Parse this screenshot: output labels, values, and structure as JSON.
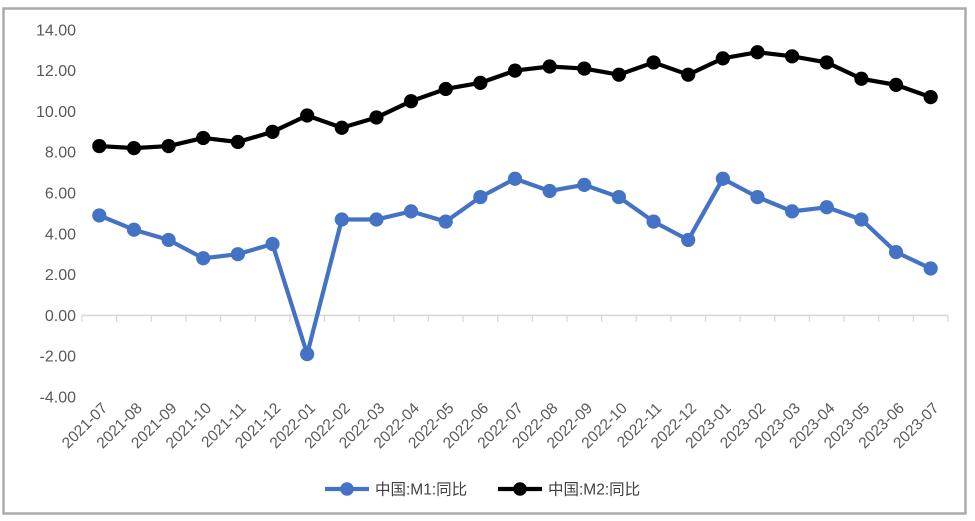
{
  "chart_data": {
    "type": "line",
    "title": "",
    "xlabel": "",
    "ylabel": "",
    "categories": [
      "2021-07",
      "2021-08",
      "2021-09",
      "2021-10",
      "2021-11",
      "2021-12",
      "2022-01",
      "2022-02",
      "2022-03",
      "2022-04",
      "2022-05",
      "2022-06",
      "2022-07",
      "2022-08",
      "2022-09",
      "2022-10",
      "2022-11",
      "2022-12",
      "2023-01",
      "2023-02",
      "2023-03",
      "2023-04",
      "2023-05",
      "2023-06",
      "2023-07"
    ],
    "series": [
      {
        "name": "中国:M1:同比",
        "color": "#4472C4",
        "marker": "circle",
        "values": [
          4.9,
          4.2,
          3.7,
          2.8,
          3.0,
          3.5,
          -1.9,
          4.7,
          4.7,
          5.1,
          4.6,
          5.8,
          6.7,
          6.1,
          6.4,
          5.8,
          4.6,
          3.7,
          6.7,
          5.8,
          5.1,
          5.3,
          4.7,
          3.1,
          2.3
        ]
      },
      {
        "name": "中国:M2:同比",
        "color": "#000000",
        "marker": "circle",
        "values": [
          8.3,
          8.2,
          8.3,
          8.7,
          8.5,
          9.0,
          9.8,
          9.2,
          9.7,
          10.5,
          11.1,
          11.4,
          12.0,
          12.2,
          12.1,
          11.8,
          12.4,
          11.8,
          12.6,
          12.9,
          12.7,
          12.4,
          11.6,
          11.3,
          10.7
        ]
      }
    ],
    "y_ticks": [
      "14.00",
      "12.00",
      "10.00",
      "8.00",
      "6.00",
      "4.00",
      "2.00",
      "0.00",
      "-2.00",
      "-4.00"
    ],
    "y_tick_values": [
      14,
      12,
      10,
      8,
      6,
      4,
      2,
      0,
      -2,
      -4
    ],
    "ylim": [
      -4,
      14
    ],
    "grid": "zero-line-only",
    "legend_position": "bottom"
  },
  "colors": {
    "m1_line": "#4472C4",
    "m2_line": "#000000",
    "axis_text": "#595959",
    "legend_text": "#404040",
    "zero_line": "#D9D9D9",
    "frame_border": "#ABABAB",
    "background": "#FFFFFF"
  }
}
